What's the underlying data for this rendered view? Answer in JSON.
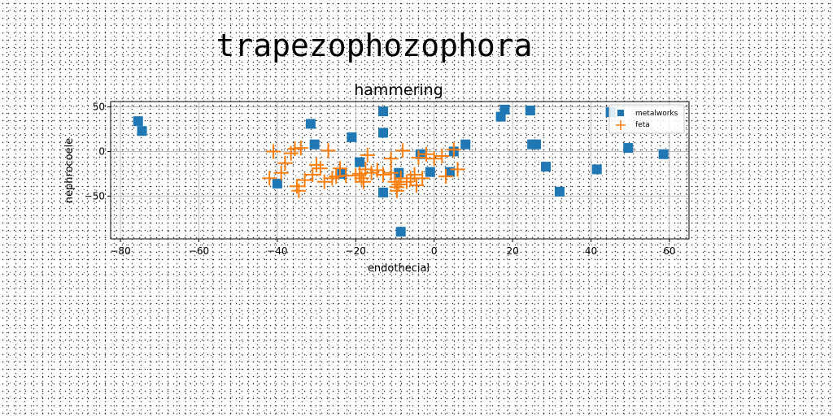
{
  "figure": {
    "suptitle": "trapezophozophora"
  },
  "chart_data": {
    "type": "scatter",
    "title": "hammering",
    "xlabel": "endothecial",
    "ylabel": "nephrocoele",
    "xlim": [
      -82.5,
      65
    ],
    "ylim": [
      -98,
      56
    ],
    "xticks": [
      -80,
      -60,
      -40,
      -20,
      0,
      20,
      40,
      60
    ],
    "yticks": [
      50,
      0,
      -50
    ],
    "grid": true,
    "legend_position": "top-right",
    "series": [
      {
        "name": "metalworks",
        "marker": "square",
        "color": "#1f77b4",
        "points": [
          [
            -75.5,
            34
          ],
          [
            -74.5,
            23
          ],
          [
            -31.5,
            31
          ],
          [
            -30.5,
            8
          ],
          [
            -40,
            -36
          ],
          [
            -23.5,
            -25
          ],
          [
            -21,
            16
          ],
          [
            -19,
            -12
          ],
          [
            -13,
            45
          ],
          [
            -13,
            21
          ],
          [
            -13,
            -46
          ],
          [
            -9,
            -24
          ],
          [
            -8.5,
            -90
          ],
          [
            -3.5,
            -3
          ],
          [
            -1,
            -23
          ],
          [
            4,
            -23
          ],
          [
            5,
            0
          ],
          [
            8,
            8
          ],
          [
            17,
            39
          ],
          [
            18,
            47
          ],
          [
            24.5,
            46
          ],
          [
            25,
            8
          ],
          [
            26,
            8
          ],
          [
            28.5,
            -17
          ],
          [
            32,
            -45
          ],
          [
            41.5,
            -20
          ],
          [
            45,
            44
          ],
          [
            49.5,
            4
          ],
          [
            58.5,
            -3
          ]
        ]
      },
      {
        "name": "feta",
        "marker": "plus",
        "color": "#ff7f0e",
        "points": [
          [
            -42,
            -30
          ],
          [
            -41,
            0
          ],
          [
            -39,
            -24
          ],
          [
            -38,
            -13
          ],
          [
            -36.5,
            -2
          ],
          [
            -35.5,
            3
          ],
          [
            -35,
            -39
          ],
          [
            -34.5,
            -44
          ],
          [
            -34,
            4
          ],
          [
            -33,
            -32
          ],
          [
            -31,
            -26
          ],
          [
            -30,
            -15
          ],
          [
            -29,
            -19
          ],
          [
            -28,
            -34
          ],
          [
            -27,
            1
          ],
          [
            -26,
            -30
          ],
          [
            -25,
            -28
          ],
          [
            -24,
            -19
          ],
          [
            -22.5,
            -27
          ],
          [
            -19,
            -25
          ],
          [
            -18.5,
            -30
          ],
          [
            -18,
            -34
          ],
          [
            -17.5,
            -20
          ],
          [
            -17,
            -4
          ],
          [
            -16,
            -24
          ],
          [
            -14.5,
            -21
          ],
          [
            -13,
            -26
          ],
          [
            -11,
            -8
          ],
          [
            -11,
            -24
          ],
          [
            -10,
            -34
          ],
          [
            -9.5,
            -40
          ],
          [
            -9,
            -37
          ],
          [
            -8.5,
            -30
          ],
          [
            -8,
            1
          ],
          [
            -7,
            -34
          ],
          [
            -5,
            -26
          ],
          [
            -4.5,
            -38
          ],
          [
            -4,
            -7
          ],
          [
            -3,
            -30
          ],
          [
            0,
            -8
          ],
          [
            2,
            -5
          ],
          [
            3,
            -28
          ],
          [
            5,
            2
          ],
          [
            6,
            -20
          ],
          [
            -9.5,
            -44
          ],
          [
            -2,
            -3
          ],
          [
            -6,
            -30
          ],
          [
            -20,
            -27
          ]
        ]
      }
    ]
  }
}
